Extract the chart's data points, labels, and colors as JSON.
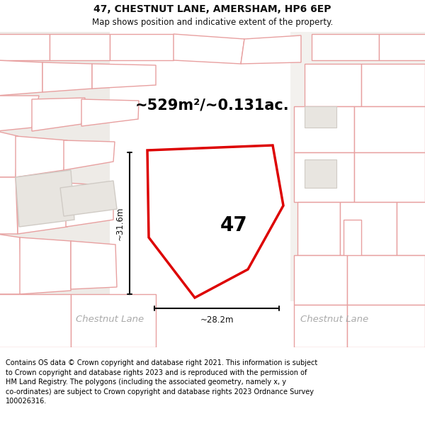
{
  "title": "47, CHESTNUT LANE, AMERSHAM, HP6 6EP",
  "subtitle": "Map shows position and indicative extent of the property.",
  "area_text": "~529m²/~0.131ac.",
  "dim_width": "~28.2m",
  "dim_height": "~31.6m",
  "label_47": "47",
  "road_label_left": "Chestnut Lane",
  "road_label_right": "Chestnut Lane",
  "footer_line1": "Contains OS data © Crown copyright and database right 2021. This information is subject",
  "footer_line2": "to Crown copyright and database rights 2023 and is reproduced with the permission of",
  "footer_line3": "HM Land Registry. The polygons (including the associated geometry, namely x, y",
  "footer_line4": "co-ordinates) are subject to Crown copyright and database rights 2023 Ordnance Survey",
  "footer_line5": "100026316.",
  "bg_color": "#ffffff",
  "map_bg": "#f7f5f2",
  "plot_edge": "#dd0000",
  "plot_fill": "#ffffff",
  "building_fill": "#d8d5d0",
  "building_edge": "#c0bcb8",
  "other_edge": "#e8a0a0",
  "other_fill": "#ffffff",
  "road_fill": "#ede8e0",
  "gray_area_fill": "#e8e5e0",
  "gray_area_edge": "#d0cbc5",
  "dim_color": "#111111",
  "road_text_color": "#aaaaaa",
  "title_color": "#111111"
}
